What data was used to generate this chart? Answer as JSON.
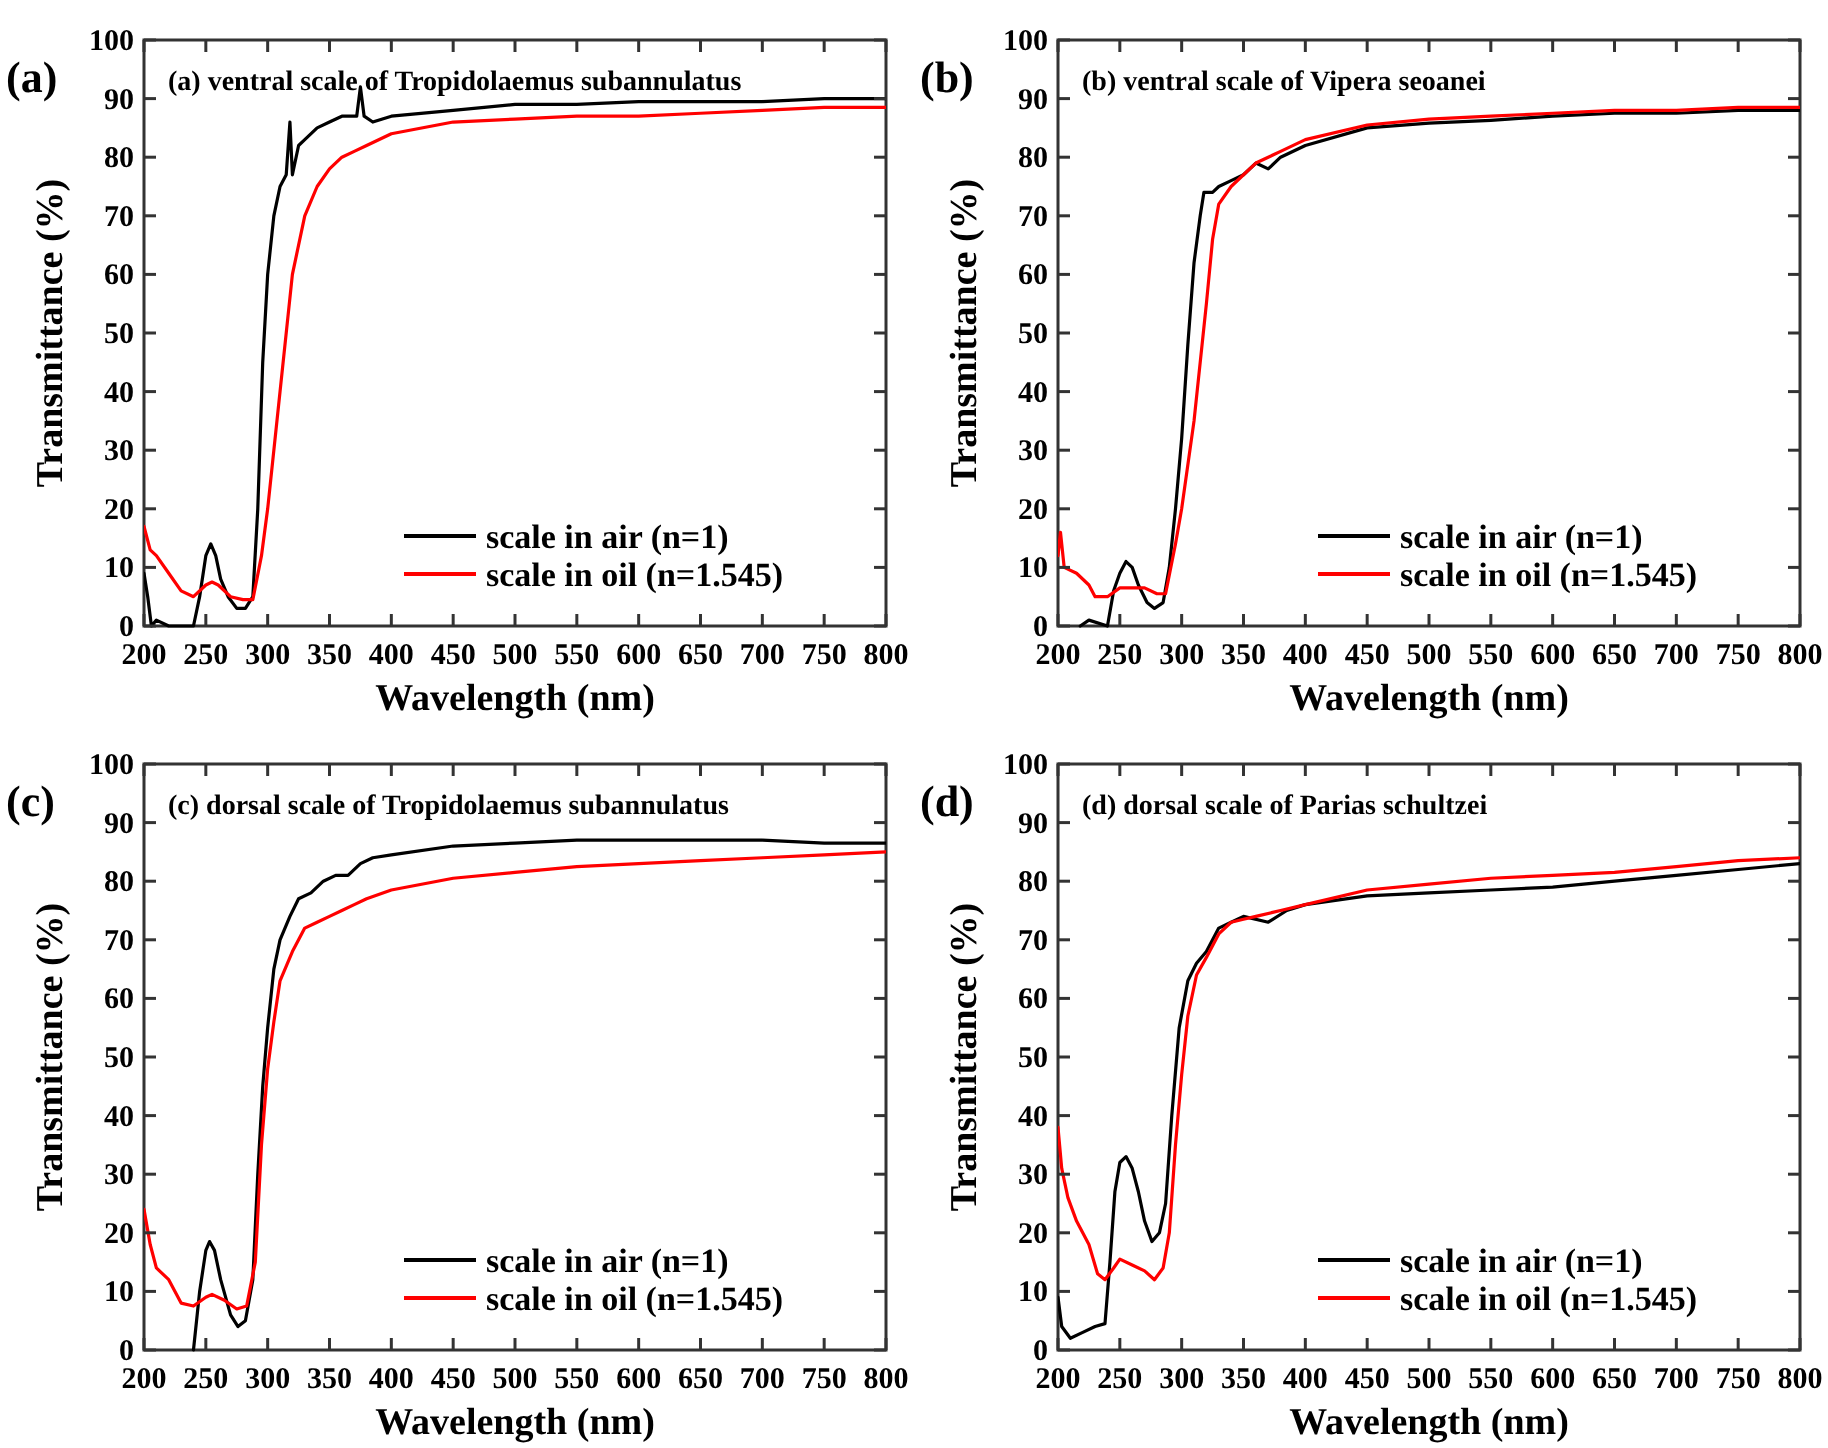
{
  "chart_data": [
    {
      "type": "line",
      "title": "(a) ventral scale of Tropidolaemus subannulatus",
      "xlabel": "Wavelength (nm)",
      "ylabel": "Transmittance (%)",
      "annotations": [
        "(a)"
      ],
      "xlim": [
        200,
        800
      ],
      "ylim": [
        0,
        100
      ],
      "xticks": [
        200,
        250,
        300,
        350,
        400,
        450,
        500,
        550,
        600,
        650,
        700,
        750,
        800
      ],
      "yticks": [
        0,
        10,
        20,
        30,
        40,
        50,
        60,
        70,
        80,
        90,
        100
      ],
      "grid": false,
      "legend": "bottom right",
      "line_style": "solid",
      "series": [
        {
          "name": "scale in air (n=1)",
          "color": "#000000",
          "x": [
            200,
            203,
            206,
            210,
            220,
            230,
            240,
            245,
            250,
            254,
            258,
            262,
            268,
            275,
            282,
            288,
            292,
            296,
            300,
            305,
            310,
            315,
            318,
            320,
            325,
            330,
            340,
            350,
            360,
            372,
            375,
            378,
            385,
            400,
            450,
            500,
            550,
            600,
            650,
            700,
            750,
            800
          ],
          "values": [
            9,
            5,
            0,
            1,
            0,
            0,
            0,
            5,
            12,
            14,
            12,
            8,
            5,
            3,
            3,
            5,
            20,
            45,
            60,
            70,
            75,
            77,
            86,
            77,
            82,
            83,
            85,
            86,
            87,
            87,
            92,
            87,
            86,
            87,
            88,
            89,
            89,
            89.5,
            89.5,
            89.5,
            90,
            90
          ]
        },
        {
          "name": "scale in oil (n=1.545)",
          "color": "#ff0000",
          "x": [
            200,
            205,
            210,
            220,
            230,
            240,
            250,
            255,
            260,
            270,
            280,
            288,
            295,
            300,
            310,
            320,
            330,
            340,
            350,
            360,
            370,
            380,
            400,
            450,
            500,
            550,
            600,
            650,
            700,
            750,
            800
          ],
          "values": [
            17,
            13,
            12,
            9,
            6,
            5,
            7,
            7.5,
            7,
            5,
            4.5,
            4.5,
            12,
            20,
            40,
            60,
            70,
            75,
            78,
            80,
            81,
            82,
            84,
            86,
            86.5,
            87,
            87,
            87.5,
            88,
            88.5,
            88.5
          ]
        }
      ]
    },
    {
      "type": "line",
      "title": "(b) ventral scale of Vipera seoanei",
      "xlabel": "Wavelength (nm)",
      "ylabel": "Transmittance (%)",
      "annotations": [
        "(b)"
      ],
      "xlim": [
        200,
        800
      ],
      "ylim": [
        0,
        100
      ],
      "xticks": [
        200,
        250,
        300,
        350,
        400,
        450,
        500,
        550,
        600,
        650,
        700,
        750,
        800
      ],
      "yticks": [
        0,
        10,
        20,
        30,
        40,
        50,
        60,
        70,
        80,
        90,
        100
      ],
      "grid": false,
      "legend": "bottom right",
      "line_style": "solid",
      "series": [
        {
          "name": "scale in air (n=1)",
          "color": "#000000",
          "x": [
            218,
            225,
            240,
            245,
            250,
            255,
            260,
            265,
            272,
            278,
            285,
            290,
            295,
            300,
            305,
            310,
            315,
            318,
            325,
            330,
            340,
            350,
            360,
            370,
            380,
            400,
            450,
            500,
            550,
            600,
            650,
            700,
            750,
            800
          ],
          "values": [
            0,
            1,
            0,
            6,
            9,
            11,
            10,
            7,
            4,
            3,
            4,
            10,
            20,
            32,
            48,
            62,
            70,
            74,
            74,
            75,
            76,
            77,
            79,
            78,
            80,
            82,
            85,
            85.8,
            86.3,
            87,
            87.5,
            87.5,
            88,
            88
          ]
        },
        {
          "name": "scale in oil (n=1.545)",
          "color": "#ff0000",
          "x": [
            200,
            202,
            205,
            215,
            225,
            230,
            240,
            250,
            260,
            270,
            280,
            287,
            295,
            300,
            310,
            320,
            325,
            330,
            340,
            350,
            360,
            370,
            380,
            400,
            450,
            500,
            550,
            600,
            650,
            700,
            750,
            800
          ],
          "values": [
            12,
            16,
            10,
            9,
            7,
            5,
            5,
            6.5,
            6.5,
            6.5,
            5.5,
            5.5,
            14,
            20,
            35,
            55,
            66,
            72,
            75,
            77,
            79,
            80,
            81,
            83,
            85.5,
            86.5,
            87,
            87.5,
            88,
            88,
            88.5,
            88.5
          ]
        }
      ]
    },
    {
      "type": "line",
      "title": "(c) dorsal scale of Tropidolaemus subannulatus",
      "xlabel": "Wavelength (nm)",
      "ylabel": "Transmittance (%)",
      "annotations": [
        "(c)"
      ],
      "xlim": [
        200,
        800
      ],
      "ylim": [
        0,
        100
      ],
      "xticks": [
        200,
        250,
        300,
        350,
        400,
        450,
        500,
        550,
        600,
        650,
        700,
        750,
        800
      ],
      "yticks": [
        0,
        10,
        20,
        30,
        40,
        50,
        60,
        70,
        80,
        90,
        100
      ],
      "grid": false,
      "legend": "bottom right",
      "line_style": "solid",
      "series": [
        {
          "name": "scale in air (n=1)",
          "color": "#000000",
          "x": [
            240,
            245,
            250,
            253,
            257,
            262,
            270,
            276,
            282,
            288,
            292,
            296,
            300,
            305,
            310,
            318,
            325,
            335,
            345,
            355,
            365,
            375,
            385,
            400,
            450,
            500,
            550,
            600,
            650,
            700,
            750,
            800
          ],
          "values": [
            0,
            10,
            17,
            18.5,
            17,
            12,
            6,
            4,
            5,
            12,
            30,
            45,
            55,
            65,
            70,
            74,
            77,
            78,
            80,
            81,
            81,
            83,
            84,
            84.5,
            86,
            86.5,
            87,
            87,
            87,
            87,
            86.5,
            86.5
          ]
        },
        {
          "name": "scale in oil (n=1.545)",
          "color": "#ff0000",
          "x": [
            200,
            205,
            210,
            220,
            230,
            240,
            250,
            255,
            265,
            275,
            283,
            290,
            295,
            300,
            305,
            310,
            320,
            330,
            340,
            350,
            360,
            370,
            380,
            400,
            450,
            500,
            550,
            600,
            650,
            700,
            750,
            800
          ],
          "values": [
            24,
            18,
            14,
            12,
            8,
            7.5,
            9,
            9.5,
            8.5,
            7,
            7.5,
            15,
            35,
            48,
            56,
            63,
            68,
            72,
            73,
            74,
            75,
            76,
            77,
            78.5,
            80.5,
            81.5,
            82.5,
            83,
            83.5,
            84,
            84.5,
            85
          ]
        }
      ]
    },
    {
      "type": "line",
      "title": "(d) dorsal scale of Parias schultzei",
      "xlabel": "Wavelength (nm)",
      "ylabel": "Transmittance (%)",
      "annotations": [
        "(d)"
      ],
      "xlim": [
        200,
        800
      ],
      "ylim": [
        0,
        100
      ],
      "xticks": [
        200,
        250,
        300,
        350,
        400,
        450,
        500,
        550,
        600,
        650,
        700,
        750,
        800
      ],
      "yticks": [
        0,
        10,
        20,
        30,
        40,
        50,
        60,
        70,
        80,
        90,
        100
      ],
      "grid": false,
      "legend": "bottom right",
      "line_style": "solid",
      "series": [
        {
          "name": "scale in air (n=1)",
          "color": "#000000",
          "x": [
            200,
            203,
            210,
            220,
            230,
            238,
            242,
            246,
            250,
            255,
            260,
            265,
            270,
            276,
            282,
            287,
            292,
            298,
            305,
            312,
            320,
            330,
            340,
            350,
            370,
            385,
            400,
            450,
            500,
            550,
            600,
            650,
            700,
            750,
            800
          ],
          "values": [
            9,
            4,
            2,
            3,
            4,
            4.5,
            15,
            27,
            32,
            33,
            31,
            27,
            22,
            18.5,
            20,
            25,
            40,
            55,
            63,
            66,
            68,
            72,
            73,
            74,
            73,
            75,
            76,
            77.5,
            78,
            78.5,
            79,
            80,
            81,
            82,
            83
          ]
        },
        {
          "name": "scale in oil (n=1.545)",
          "color": "#ff0000",
          "x": [
            200,
            203,
            208,
            215,
            225,
            232,
            238,
            245,
            250,
            260,
            270,
            278,
            285,
            290,
            295,
            300,
            305,
            312,
            320,
            330,
            340,
            350,
            360,
            380,
            400,
            450,
            500,
            550,
            600,
            650,
            700,
            750,
            800
          ],
          "values": [
            38,
            31,
            26,
            22,
            18,
            13,
            12,
            14,
            15.5,
            14.5,
            13.5,
            12,
            14,
            20,
            35,
            47,
            57,
            64,
            67,
            71,
            73,
            73.5,
            74,
            75,
            76,
            78.5,
            79.5,
            80.5,
            81,
            81.5,
            82.5,
            83.5,
            84
          ]
        }
      ]
    }
  ]
}
